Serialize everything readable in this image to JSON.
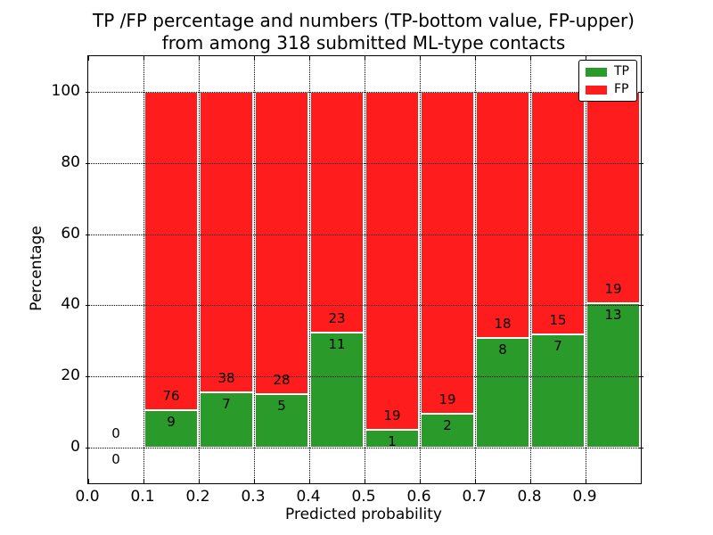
{
  "chart_data": {
    "type": "bar",
    "stacked": true,
    "title_line1": "TP /FP percentage and numbers (TP-bottom value, FP-upper)",
    "title_line2": "from among 318 submitted ML-type contacts",
    "xlabel": "Predicted probability",
    "ylabel": "Percentage",
    "total_contacts": 318,
    "xlim": [
      0.0,
      1.0
    ],
    "ylim": [
      -10,
      110
    ],
    "grid": "dotted, drawn above bars",
    "xticks": {
      "values": [
        0.0,
        0.1,
        0.2,
        0.3,
        0.4,
        0.5,
        0.6,
        0.7,
        0.8,
        0.9
      ],
      "labels": [
        "0.0",
        "0.1",
        "0.2",
        "0.3",
        "0.4",
        "0.5",
        "0.6",
        "0.7",
        "0.8",
        "0.9"
      ]
    },
    "yticks": {
      "values": [
        0,
        20,
        40,
        60,
        80,
        100
      ],
      "labels": [
        "0",
        "20",
        "40",
        "60",
        "80",
        "100"
      ]
    },
    "grid_x": [
      0.1,
      0.2,
      0.3,
      0.4,
      0.5,
      0.6,
      0.7,
      0.8,
      0.9
    ],
    "grid_y": [
      0,
      20,
      40,
      60,
      80,
      100
    ],
    "colors": {
      "tp": "#2a9a2a",
      "fp": "#fe1c1c"
    },
    "legend": {
      "position": "upper right",
      "entries": [
        {
          "label": "TP",
          "color": "#2a9a2a"
        },
        {
          "label": "FP",
          "color": "#fe1c1c"
        }
      ]
    },
    "bins": [
      {
        "range": [
          0.0,
          0.1
        ],
        "tp": 0,
        "fp": 0,
        "tp_pct": 0
      },
      {
        "range": [
          0.1,
          0.2
        ],
        "tp": 9,
        "fp": 76,
        "tp_pct": 10.59
      },
      {
        "range": [
          0.2,
          0.3
        ],
        "tp": 7,
        "fp": 38,
        "tp_pct": 15.56
      },
      {
        "range": [
          0.3,
          0.4
        ],
        "tp": 5,
        "fp": 28,
        "tp_pct": 15.15
      },
      {
        "range": [
          0.4,
          0.5
        ],
        "tp": 11,
        "fp": 23,
        "tp_pct": 32.35
      },
      {
        "range": [
          0.5,
          0.6
        ],
        "tp": 1,
        "fp": 19,
        "tp_pct": 5.0
      },
      {
        "range": [
          0.6,
          0.7
        ],
        "tp": 2,
        "fp": 19,
        "tp_pct": 9.52
      },
      {
        "range": [
          0.7,
          0.8
        ],
        "tp": 8,
        "fp": 18,
        "tp_pct": 30.77
      },
      {
        "range": [
          0.8,
          0.9
        ],
        "tp": 7,
        "fp": 15,
        "tp_pct": 31.82
      },
      {
        "range": [
          0.9,
          1.0
        ],
        "tp": 13,
        "fp": 19,
        "tp_pct": 40.63
      }
    ]
  }
}
